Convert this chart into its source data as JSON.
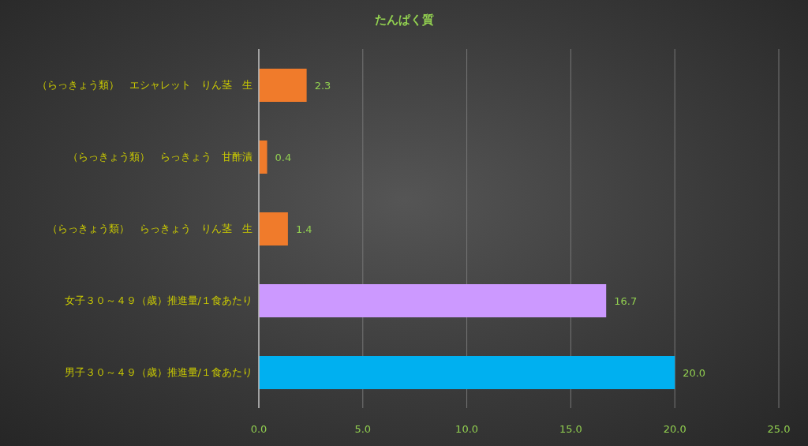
{
  "chart_data": {
    "type": "bar",
    "orientation": "horizontal",
    "title": "たんぱく質",
    "categories": [
      "（らっきょう類）　エシャレット　りん茎　生",
      "（らっきょう類）　らっきょう　甘酢漬",
      "（らっきょう類）　らっきょう　りん茎　生",
      "女子３０～４９（歳）推進量/１食あたり",
      "男子３０～４９（歳）推進量/１食あたり"
    ],
    "values": [
      2.3,
      0.4,
      1.4,
      16.7,
      20.0
    ],
    "colors": [
      "#f07b2b",
      "#f07b2b",
      "#f07b2b",
      "#cc99ff",
      "#00b0f0"
    ],
    "value_labels": [
      "2.3",
      "0.4",
      "1.4",
      "16.7",
      "20.0"
    ],
    "xlim": [
      0,
      25
    ],
    "xticks": [
      {
        "value": 0,
        "label": "0.0"
      },
      {
        "value": 5,
        "label": "5.0"
      },
      {
        "value": 10,
        "label": "10.0"
      },
      {
        "value": 15,
        "label": "15.0"
      },
      {
        "value": 20,
        "label": "20.0"
      },
      {
        "value": 25,
        "label": "25.0"
      }
    ],
    "grid": "x"
  }
}
